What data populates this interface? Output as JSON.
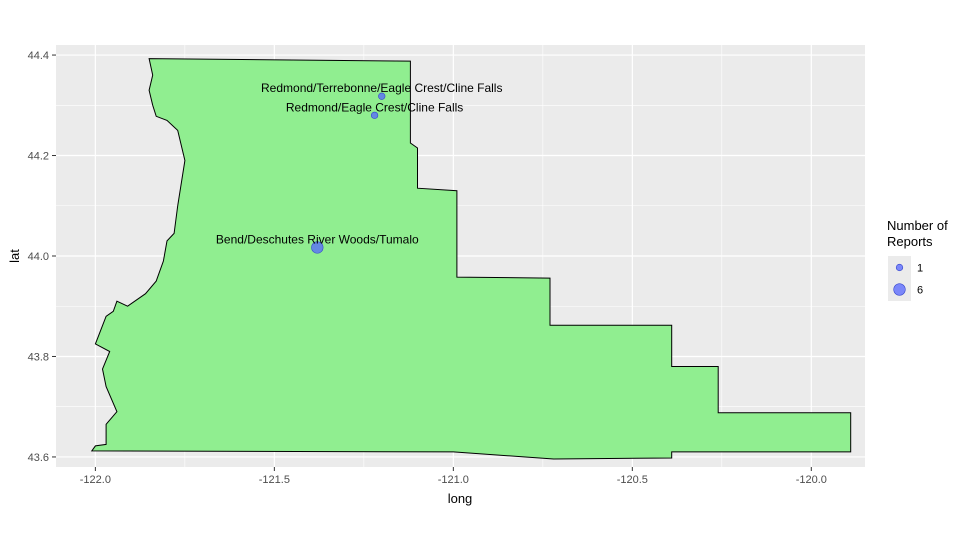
{
  "chart_data": {
    "type": "scatter",
    "subtype": "map",
    "title": "",
    "xlabel": "long",
    "ylabel": "lat",
    "xlim": [
      -122.11,
      -119.85
    ],
    "ylim": [
      43.58,
      44.42
    ],
    "x_ticks": [
      -122.0,
      -121.5,
      -121.0,
      -120.5,
      -120.0
    ],
    "x_tick_labels": [
      "-122.0",
      "-121.5",
      "-121.0",
      "-120.5",
      "-120.0"
    ],
    "y_ticks": [
      43.6,
      43.8,
      44.0,
      44.2,
      44.4
    ],
    "y_tick_labels": [
      "43.6",
      "43.8",
      "44.0",
      "44.2",
      "44.4"
    ],
    "grid": true,
    "panel_background": "#ebebeb",
    "grid_color": "#ffffff",
    "region_fill": "#90ee90",
    "region_stroke": "#000000",
    "point_color": "#5566ff",
    "point_alpha": 0.75,
    "region_outline": [
      [
        -121.85,
        44.393
      ],
      [
        -121.12,
        44.388
      ],
      [
        -121.12,
        44.225
      ],
      [
        -121.1,
        44.215
      ],
      [
        -121.1,
        44.135
      ],
      [
        -120.99,
        44.13
      ],
      [
        -120.99,
        43.958
      ],
      [
        -120.73,
        43.956
      ],
      [
        -120.73,
        43.862
      ],
      [
        -120.39,
        43.862
      ],
      [
        -120.39,
        43.78
      ],
      [
        -120.26,
        43.78
      ],
      [
        -120.26,
        43.688
      ],
      [
        -119.89,
        43.688
      ],
      [
        -119.89,
        43.61
      ],
      [
        -120.39,
        43.61
      ],
      [
        -120.39,
        43.598
      ],
      [
        -120.72,
        43.596
      ],
      [
        -121.0,
        43.61
      ],
      [
        -122.01,
        43.612
      ],
      [
        -122.0,
        43.622
      ],
      [
        -121.97,
        43.625
      ],
      [
        -121.97,
        43.665
      ],
      [
        -121.94,
        43.69
      ],
      [
        -121.97,
        43.74
      ],
      [
        -121.98,
        43.775
      ],
      [
        -121.96,
        43.81
      ],
      [
        -122.0,
        43.825
      ],
      [
        -121.97,
        43.88
      ],
      [
        -121.95,
        43.89
      ],
      [
        -121.94,
        43.91
      ],
      [
        -121.91,
        43.9
      ],
      [
        -121.86,
        43.925
      ],
      [
        -121.83,
        43.95
      ],
      [
        -121.81,
        43.99
      ],
      [
        -121.8,
        44.03
      ],
      [
        -121.78,
        44.045
      ],
      [
        -121.77,
        44.1
      ],
      [
        -121.75,
        44.19
      ],
      [
        -121.77,
        44.25
      ],
      [
        -121.8,
        44.27
      ],
      [
        -121.83,
        44.278
      ],
      [
        -121.84,
        44.3
      ],
      [
        -121.85,
        44.33
      ],
      [
        -121.84,
        44.36
      ],
      [
        -121.85,
        44.393
      ]
    ],
    "series": [
      {
        "points": [
          {
            "label": "Redmond/Terrebonne/Eagle Crest/Cline Falls",
            "x": -121.2,
            "y": 44.318,
            "reports": 1
          },
          {
            "label": "Redmond/Eagle Crest/Cline Falls",
            "x": -121.22,
            "y": 44.28,
            "reports": 1
          },
          {
            "label": "Bend/Deschutes River Woods/Tumalo",
            "x": -121.38,
            "y": 44.017,
            "reports": 6
          }
        ]
      }
    ],
    "legend": {
      "title_lines": [
        "Number of",
        "Reports"
      ],
      "position": "right",
      "entries": [
        {
          "label": "1",
          "reports": 1
        },
        {
          "label": "6",
          "reports": 6
        }
      ]
    }
  }
}
